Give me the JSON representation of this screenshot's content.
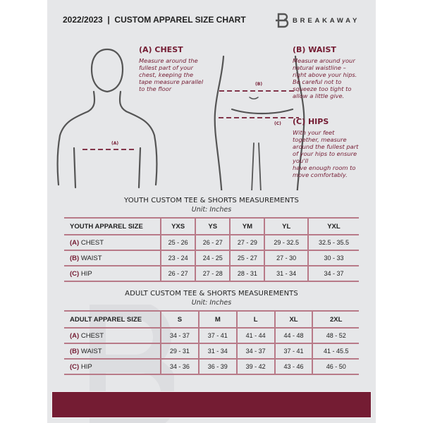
{
  "header": {
    "title": "2022/2023  |  CUSTOM APPAREL SIZE CHART",
    "brand": "BREAKAWAY",
    "logo_letter": "B"
  },
  "chest": {
    "heading": "(A) CHEST",
    "lines": [
      "Measure around the",
      "fullest part of your",
      "chest, keeping the",
      "tape measure parallel",
      "to the floor"
    ],
    "tag": "(A)"
  },
  "waist": {
    "heading": "(B) WAIST",
    "lines": [
      "Measure around your",
      "natural waistline –",
      "right above your hips.",
      "Be careful not to",
      "squeeze too tight to",
      "allow a little give."
    ],
    "tag": "(B)"
  },
  "hips": {
    "heading": "(C) HIPS",
    "lines": [
      "With your feet",
      "together, measure",
      "around the fullest part",
      "of your hips to ensure",
      "you'll",
      "have enough room to",
      "move comfortably."
    ],
    "tag": "(C)"
  },
  "youth": {
    "title": "YOUTH CUSTOM TEE & SHORTS MEASUREMENTS",
    "unit": "Unit: Inches",
    "header": [
      "YOUTH APPAREL SIZE",
      "YXS",
      "YS",
      "YM",
      "YL",
      "YXL"
    ],
    "rows": [
      {
        "code": "(A)",
        "name": "CHEST",
        "values": [
          "25 - 26",
          "26 - 27",
          "27 - 29",
          "29 - 32.5",
          "32.5 - 35.5"
        ]
      },
      {
        "code": "(B)",
        "name": "WAIST",
        "values": [
          "23 - 24",
          "24 - 25",
          "25 - 27",
          "27 - 30",
          "30 - 33"
        ]
      },
      {
        "code": "(C)",
        "name": "HIP",
        "values": [
          "26 - 27",
          "27 - 28",
          "28 - 31",
          "31 - 34",
          "34 - 37"
        ]
      }
    ]
  },
  "adult": {
    "title": "ADULT CUSTOM TEE & SHORTS MEASUREMENTS",
    "unit": "Unit: Inches",
    "header": [
      "ADULT APPAREL SIZE",
      "S",
      "M",
      "L",
      "XL",
      "2XL"
    ],
    "rows": [
      {
        "code": "(A)",
        "name": "CHEST",
        "values": [
          "34 - 37",
          "37 - 41",
          "41 - 44",
          "44 - 48",
          "48 - 52"
        ]
      },
      {
        "code": "(B)",
        "name": "WAIST",
        "values": [
          "29 - 31",
          "31 - 34",
          "34 - 37",
          "37 - 41",
          "41 - 45.5"
        ]
      },
      {
        "code": "(C)",
        "name": "HIP",
        "values": [
          "34 - 36",
          "36 - 39",
          "39 - 42",
          "43 - 46",
          "46 - 50"
        ]
      }
    ]
  },
  "colors": {
    "accent": "#741c33",
    "background": "#e6e7e9"
  }
}
